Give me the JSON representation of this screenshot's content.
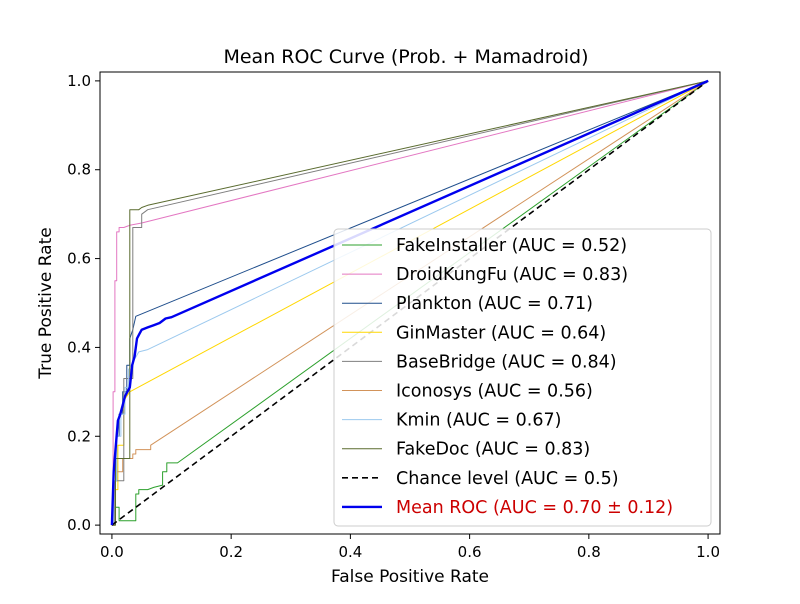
{
  "chart_data": {
    "type": "line",
    "title": "Mean ROC Curve (Prob. + Mamadroid)",
    "xlabel": "False Positive Rate",
    "ylabel": "True Positive Rate",
    "xlim": [
      -0.02,
      1.02
    ],
    "ylim": [
      -0.02,
      1.02
    ],
    "xticks": [
      "0.0",
      "0.2",
      "0.4",
      "0.6",
      "0.8",
      "1.0"
    ],
    "yticks": [
      "0.0",
      "0.2",
      "0.4",
      "0.6",
      "0.8",
      "1.0"
    ],
    "grid": false,
    "legend_position": "lower-right",
    "series": [
      {
        "name": "FakeInstaller (AUC = 0.52)",
        "color": "#2ca02c",
        "linewidth": 1,
        "x": [
          0.0,
          0.005,
          0.005,
          0.012,
          0.012,
          0.02,
          0.02,
          0.04,
          0.04,
          0.045,
          0.045,
          0.06,
          0.07,
          0.085,
          0.085,
          0.092,
          0.092,
          0.105,
          0.11,
          1.0
        ],
        "y": [
          0.0,
          0.0,
          0.04,
          0.04,
          0.01,
          0.01,
          0.01,
          0.01,
          0.07,
          0.07,
          0.08,
          0.08,
          0.085,
          0.09,
          0.12,
          0.12,
          0.14,
          0.14,
          0.14,
          1.0
        ]
      },
      {
        "name": "DroidKungFu (AUC = 0.83)",
        "color": "#e377c2",
        "linewidth": 1,
        "x": [
          0.0,
          0.002,
          0.002,
          0.005,
          0.005,
          0.008,
          0.008,
          0.012,
          0.012,
          0.02,
          0.03,
          0.05,
          1.0
        ],
        "y": [
          0.0,
          0.0,
          0.3,
          0.3,
          0.55,
          0.55,
          0.66,
          0.66,
          0.67,
          0.67,
          0.675,
          0.68,
          1.0
        ]
      },
      {
        "name": "Plankton (AUC = 0.71)",
        "color": "#1f4e8c",
        "linewidth": 1,
        "x": [
          0.0,
          0.004,
          0.004,
          0.008,
          0.008,
          0.012,
          0.012,
          0.018,
          0.018,
          0.025,
          0.025,
          0.03,
          0.03,
          0.035,
          0.04,
          1.0
        ],
        "y": [
          0.0,
          0.0,
          0.1,
          0.1,
          0.2,
          0.2,
          0.25,
          0.25,
          0.3,
          0.3,
          0.36,
          0.36,
          0.42,
          0.44,
          0.47,
          1.0
        ]
      },
      {
        "name": "GinMaster (AUC = 0.64)",
        "color": "#ffd700",
        "linewidth": 1,
        "x": [
          0.0,
          0.004,
          0.004,
          0.01,
          0.01,
          0.02,
          0.02,
          0.03,
          1.0
        ],
        "y": [
          0.0,
          0.0,
          0.08,
          0.08,
          0.18,
          0.18,
          0.28,
          0.3,
          1.0
        ]
      },
      {
        "name": "BaseBridge (AUC = 0.84)",
        "color": "#7f7f7f",
        "linewidth": 1,
        "x": [
          0.0,
          0.004,
          0.004,
          0.02,
          0.02,
          0.035,
          0.035,
          0.05,
          0.05,
          0.06,
          1.0
        ],
        "y": [
          0.0,
          0.0,
          0.1,
          0.1,
          0.33,
          0.33,
          0.67,
          0.67,
          0.7,
          0.71,
          1.0
        ]
      },
      {
        "name": "Iconosys (AUC = 0.56)",
        "color": "#d2935a",
        "linewidth": 1,
        "x": [
          0.0,
          0.006,
          0.006,
          0.018,
          0.018,
          0.035,
          0.035,
          0.04,
          0.04,
          0.065,
          0.065,
          1.0
        ],
        "y": [
          0.0,
          0.0,
          0.12,
          0.12,
          0.15,
          0.15,
          0.16,
          0.16,
          0.17,
          0.17,
          0.18,
          1.0
        ]
      },
      {
        "name": "Kmin (AUC = 0.67)",
        "color": "#9cc9ee",
        "linewidth": 1,
        "x": [
          0.0,
          0.003,
          0.003,
          0.008,
          0.008,
          0.015,
          0.015,
          0.022,
          0.022,
          0.028,
          0.028,
          0.045,
          0.06,
          1.0
        ],
        "y": [
          0.0,
          0.0,
          0.1,
          0.1,
          0.2,
          0.2,
          0.25,
          0.25,
          0.31,
          0.31,
          0.35,
          0.39,
          0.395,
          1.0
        ]
      },
      {
        "name": "FakeDoc (AUC = 0.83)",
        "color": "#5a6b2f",
        "linewidth": 1,
        "x": [
          0.0,
          0.006,
          0.006,
          0.02,
          0.02,
          0.03,
          0.03,
          0.045,
          0.045,
          0.05,
          0.06,
          1.0
        ],
        "y": [
          0.0,
          0.0,
          0.15,
          0.15,
          0.15,
          0.15,
          0.71,
          0.71,
          0.71,
          0.715,
          0.72,
          1.0
        ]
      },
      {
        "name": "Chance level (AUC = 0.5)",
        "color": "#000000",
        "linewidth": 1.6,
        "dash": "6,4",
        "x": [
          0.0,
          1.0
        ],
        "y": [
          0.0,
          1.0
        ]
      },
      {
        "name": "Mean ROC (AUC = 0.70 ± 0.12)",
        "color": "#0000ee",
        "linewidth": 2.4,
        "legend_text_color": "#cc0000",
        "x": [
          0.0,
          0.003,
          0.006,
          0.01,
          0.014,
          0.018,
          0.022,
          0.026,
          0.03,
          0.034,
          0.038,
          0.042,
          0.046,
          0.05,
          0.06,
          0.07,
          0.08,
          0.09,
          0.1,
          1.0
        ],
        "y": [
          0.0,
          0.12,
          0.17,
          0.235,
          0.25,
          0.27,
          0.29,
          0.3,
          0.31,
          0.36,
          0.38,
          0.42,
          0.43,
          0.44,
          0.445,
          0.45,
          0.455,
          0.465,
          0.468,
          1.0
        ]
      }
    ]
  }
}
